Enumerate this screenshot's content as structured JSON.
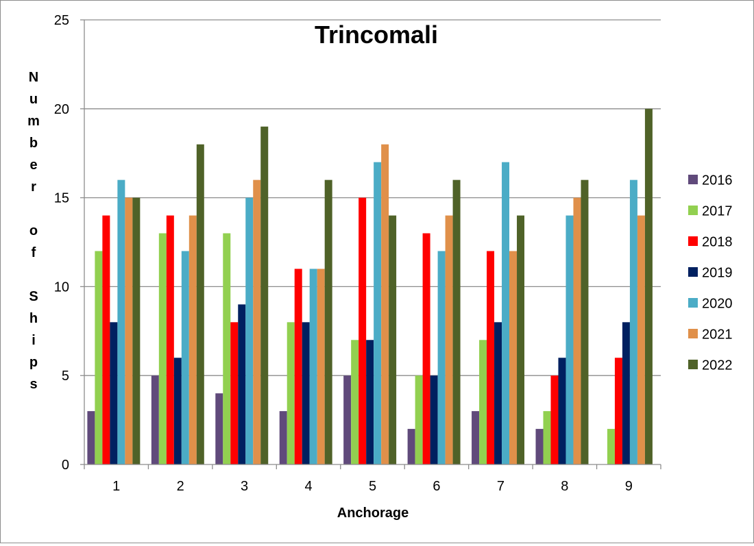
{
  "chart_data": {
    "type": "bar",
    "title": "Trincomali",
    "xlabel": "Anchorage",
    "ylabel": "Number of Ships",
    "ylabel_stacked": [
      "N",
      "u",
      "m",
      "b",
      "e",
      "r",
      "",
      "o",
      "f",
      "",
      "S",
      "h",
      "i",
      "p",
      "s"
    ],
    "categories": [
      "1",
      "2",
      "3",
      "4",
      "5",
      "6",
      "7",
      "8",
      "9"
    ],
    "ylim": [
      0,
      25
    ],
    "yticks": [
      0,
      5,
      10,
      15,
      20,
      25
    ],
    "grid": true,
    "legend_position": "right",
    "series": [
      {
        "name": "2016",
        "color": "#604a7b",
        "values": [
          3,
          5,
          4,
          3,
          5,
          2,
          3,
          2,
          0
        ]
      },
      {
        "name": "2017",
        "color": "#92d050",
        "values": [
          12,
          13,
          13,
          8,
          7,
          5,
          7,
          3,
          2
        ]
      },
      {
        "name": "2018",
        "color": "#ff0000",
        "values": [
          14,
          14,
          8,
          11,
          15,
          13,
          12,
          5,
          6
        ]
      },
      {
        "name": "2019",
        "color": "#002060",
        "values": [
          8,
          6,
          9,
          8,
          7,
          5,
          8,
          6,
          8
        ]
      },
      {
        "name": "2020",
        "color": "#4bacc6",
        "values": [
          16,
          12,
          15,
          11,
          17,
          12,
          17,
          14,
          16
        ]
      },
      {
        "name": "2021",
        "color": "#e0904a",
        "values": [
          15,
          14,
          16,
          11,
          18,
          14,
          12,
          15,
          14
        ]
      },
      {
        "name": "2022",
        "color": "#4f6228",
        "values": [
          15,
          18,
          19,
          16,
          14,
          16,
          14,
          16,
          20
        ]
      }
    ]
  }
}
